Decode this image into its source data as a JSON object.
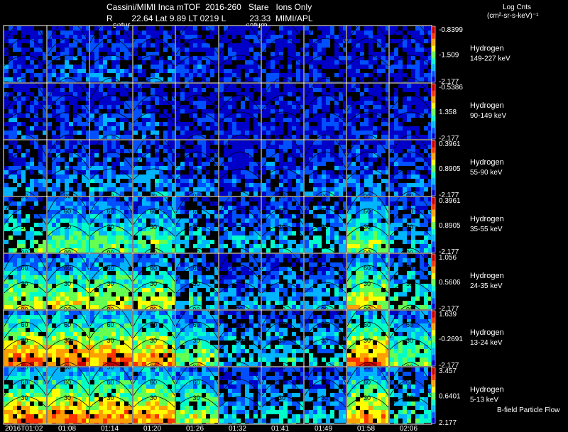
{
  "header": {
    "line1": "Cassini/MIMI Inca mTOF  2016-260   Stare   Ions Only",
    "line2": "R        22.64 Lat 9.89 LT 0219 L          23.33  MIMI/APL",
    "units_line1": "Log Cnts",
    "units_line2": "(cm²-sr-s-keV)⁻¹",
    "planet_label_1": "satur",
    "planet_label_2": "saturn"
  },
  "footer": {
    "bfield_label": "B-field Particle Flow"
  },
  "colors": {
    "background": "#000000",
    "panel_border": "#ffffff",
    "colorbar": [
      "#0000c8",
      "#0050ff",
      "#00b4ff",
      "#00ffc8",
      "#64ff50",
      "#ffff00",
      "#ffa000",
      "#ff3200",
      "#c80000"
    ]
  },
  "chart_data": {
    "type": "heatmap",
    "title": "Cassini/MIMI Inca mTOF 2016-260 Stare Ions Only",
    "colorbar_label": "Log Cnts (cm²-sr-s-keV)⁻¹",
    "x_tick_labels": [
      "2016T01:02",
      "01:08",
      "01:14",
      "01:20",
      "01:26",
      "01:32",
      "01:41",
      "01:49",
      "01:58",
      "02:06"
    ],
    "contour_labels": [
      "30",
      "60",
      "90"
    ],
    "rows": [
      {
        "species": "Hydrogen",
        "energy": "149-227 keV",
        "cbar_top": "-0.8399",
        "cbar_mid": "-1.509",
        "cbar_bottom": "-2.177",
        "intensity": [
          0.15,
          0.18,
          0.2,
          0.2,
          0.12,
          0.08,
          0.1,
          0.1,
          0.12,
          0.08
        ]
      },
      {
        "species": "Hydrogen",
        "energy": "90-149 keV",
        "cbar_top": "-0.5386",
        "cbar_mid": "1.358",
        "cbar_bottom": "-2.177",
        "intensity": [
          0.15,
          0.15,
          0.18,
          0.18,
          0.1,
          0.05,
          0.08,
          0.1,
          0.12,
          0.08
        ]
      },
      {
        "species": "Hydrogen",
        "energy": "55-90 keV",
        "cbar_top": "0.3961",
        "cbar_mid": "0.8905",
        "cbar_bottom": "-2.177",
        "intensity": [
          0.25,
          0.25,
          0.28,
          0.28,
          0.2,
          0.15,
          0.2,
          0.22,
          0.25,
          0.18
        ]
      },
      {
        "species": "Hydrogen",
        "energy": "35-55 keV",
        "cbar_top": "0.3961",
        "cbar_mid": "0.8905",
        "cbar_bottom": "-2.177",
        "intensity": [
          0.48,
          0.5,
          0.5,
          0.5,
          0.35,
          0.3,
          0.35,
          0.35,
          0.55,
          0.35
        ]
      },
      {
        "species": "Hydrogen",
        "energy": "24-35 keV",
        "cbar_top": "1.056",
        "cbar_mid": "0.5606",
        "cbar_bottom": "-2.177",
        "intensity": [
          0.62,
          0.62,
          0.62,
          0.62,
          0.4,
          0.25,
          0.3,
          0.3,
          0.65,
          0.45
        ]
      },
      {
        "species": "Hydrogen",
        "energy": "13-24 keV",
        "cbar_top": "1.639",
        "cbar_mid": "-0.2691",
        "cbar_bottom": "-2.177",
        "intensity": [
          0.82,
          0.82,
          0.82,
          0.78,
          0.55,
          0.35,
          0.4,
          0.38,
          0.82,
          0.55
        ]
      },
      {
        "species": "Hydrogen",
        "energy": "5-13 keV",
        "cbar_top": "3.457",
        "cbar_mid": "0.6401",
        "cbar_bottom": "2.177",
        "intensity": [
          0.8,
          0.8,
          0.8,
          0.78,
          0.6,
          0.3,
          0.35,
          0.32,
          0.75,
          0.45
        ]
      }
    ]
  }
}
